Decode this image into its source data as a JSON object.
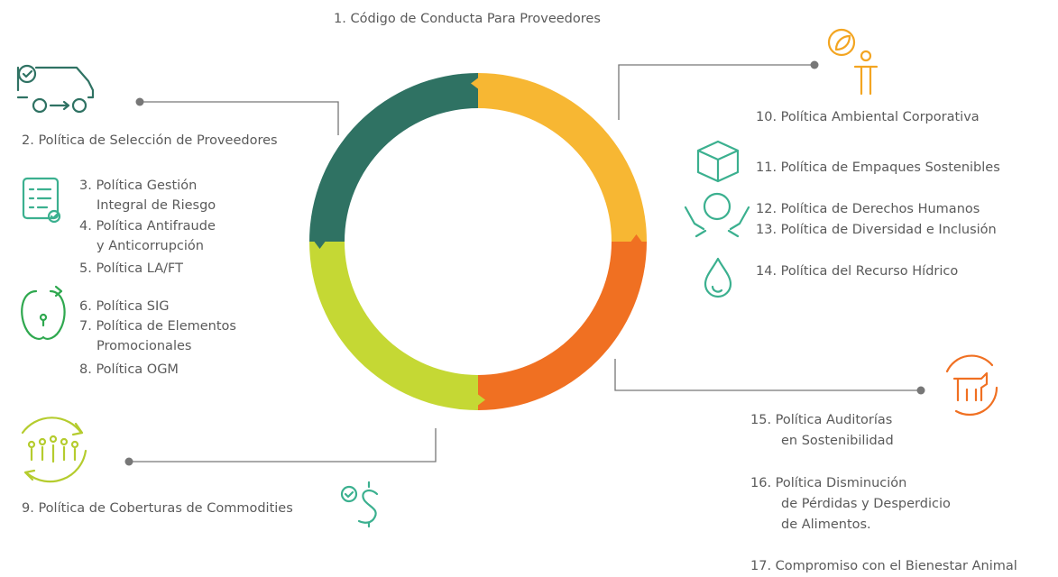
{
  "title": "1. Código de Conducta Para Proveedores",
  "items": [
    {
      "lines": [
        "2. Política de Selección de Proveedores"
      ]
    },
    {
      "lines": [
        "3. Política Gestión",
        "Integral de Riesgo"
      ]
    },
    {
      "lines": [
        "4. Política Antifraude",
        "y Anticorrupción"
      ]
    },
    {
      "lines": [
        "5. Política LA/FT"
      ]
    },
    {
      "lines": [
        "6. Política SIG"
      ]
    },
    {
      "lines": [
        "7. Política de Elementos",
        "Promocionales"
      ]
    },
    {
      "lines": [
        "8. Política OGM"
      ]
    },
    {
      "lines": [
        "9. Política de Coberturas de Commodities"
      ]
    },
    {
      "lines": [
        "10. Política Ambiental Corporativa"
      ]
    },
    {
      "lines": [
        "11. Política de Empaques Sostenibles"
      ]
    },
    {
      "lines": [
        "12. Política de Derechos Humanos"
      ]
    },
    {
      "lines": [
        "13. Política de Diversidad e Inclusión"
      ]
    },
    {
      "lines": [
        "14. Política del Recurso Hídrico"
      ]
    },
    {
      "lines": [
        "15. Política Auditorías",
        "en Sostenibilidad"
      ]
    },
    {
      "lines": [
        "16. Política Disminución",
        "de Pérdidas y Desperdicio",
        "de Alimentos."
      ]
    },
    {
      "lines": [
        "17. Compromiso con el Bienestar Animal"
      ]
    }
  ]
}
